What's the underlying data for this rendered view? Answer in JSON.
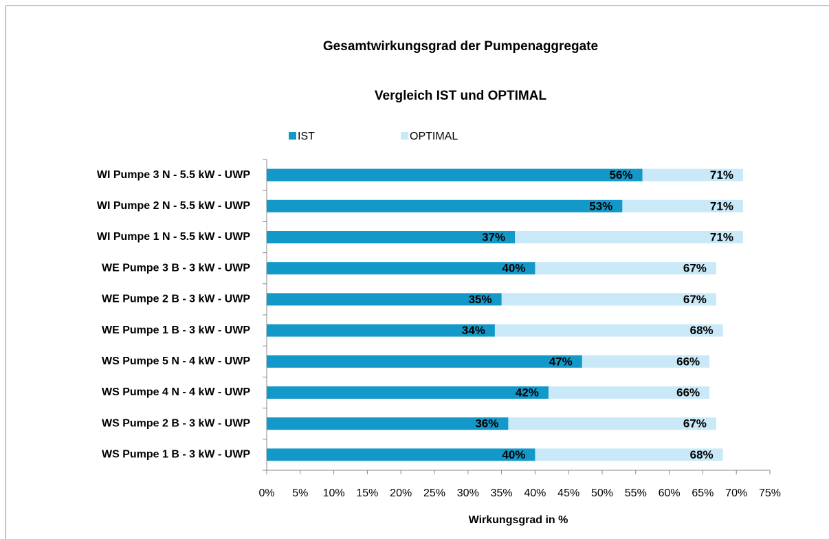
{
  "chart_data": {
    "type": "bar",
    "orientation": "horizontal",
    "overlap": true,
    "title": "Gesamtwirkungsgrad der Pumpenaggregate",
    "subtitle": "Vergleich IST und OPTIMAL",
    "x_label": "Wirkungsgrad in %",
    "categories": [
      "WI Pumpe 3 N - 5.5 kW - UWP",
      "WI Pumpe 2 N - 5.5 kW - UWP",
      "WI Pumpe 1 N - 5.5 kW - UWP",
      "WE Pumpe 3 B - 3 kW - UWP",
      "WE Pumpe 2 B - 3 kW - UWP",
      "WE Pumpe 1 B - 3 kW - UWP",
      "WS Pumpe 5 N - 4 kW - UWP",
      "WS Pumpe 4 N - 4 kW - UWP",
      "WS Pumpe 2 B - 3 kW - UWP",
      "WS Pumpe 1 B - 3 kW - UWP"
    ],
    "series": [
      {
        "name": "OPTIMAL",
        "color": "#c9e9f9",
        "values": [
          71,
          71,
          71,
          67,
          67,
          68,
          66,
          66,
          67,
          68
        ],
        "value_labels": [
          "71%",
          "71%",
          "71%",
          "67%",
          "67%",
          "68%",
          "66%",
          "66%",
          "67%",
          "68%"
        ]
      },
      {
        "name": "IST",
        "color": "#1399c9",
        "values": [
          56,
          53,
          37,
          40,
          35,
          34,
          47,
          42,
          36,
          40
        ],
        "value_labels": [
          "56%",
          "53%",
          "37%",
          "40%",
          "35%",
          "34%",
          "47%",
          "42%",
          "36%",
          "40%"
        ]
      }
    ],
    "xlim": [
      0,
      75
    ],
    "xticks": [
      {
        "value": 0,
        "label": "0%"
      },
      {
        "value": 5,
        "label": "5%"
      },
      {
        "value": 10,
        "label": "10%"
      },
      {
        "value": 15,
        "label": "15%"
      },
      {
        "value": 20,
        "label": "20%"
      },
      {
        "value": 25,
        "label": "25%"
      },
      {
        "value": 30,
        "label": "30%"
      },
      {
        "value": 35,
        "label": "35%"
      },
      {
        "value": 40,
        "label": "40%"
      },
      {
        "value": 45,
        "label": "45%"
      },
      {
        "value": 50,
        "label": "50%"
      },
      {
        "value": 55,
        "label": "55%"
      },
      {
        "value": 60,
        "label": "60%"
      },
      {
        "value": 65,
        "label": "65%"
      },
      {
        "value": 70,
        "label": "70%"
      },
      {
        "value": 75,
        "label": "75%"
      }
    ],
    "legend_order": [
      1,
      0
    ],
    "grid": false
  }
}
